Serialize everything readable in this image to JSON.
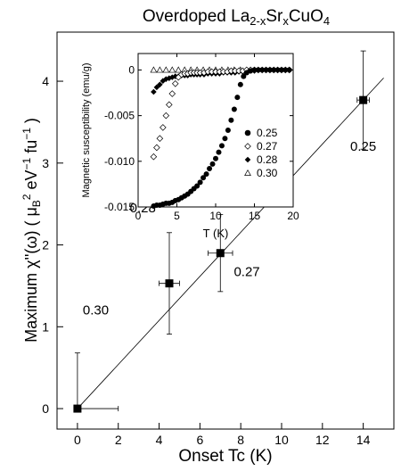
{
  "chart_data": [
    {
      "type": "scatter",
      "title": {
        "main": "Overdoped La",
        "sub1": "2-x",
        "mid1": "Sr",
        "sub2": "x",
        "mid2": "CuO",
        "sub3": "4"
      },
      "xlabel": "Onset Tc (K)",
      "ylabel": {
        "pre": "Maximum χ''(ω)  ( μ",
        "sub": "B",
        "sup1": "2",
        "mid": " eV",
        "sup2": "−1",
        "mid2": " fu",
        "sup3": "−1",
        "post": " )"
      },
      "xlim": [
        -1,
        15.5
      ],
      "ylim": [
        -0.25,
        4.6
      ],
      "xticks": [
        0,
        2,
        4,
        6,
        8,
        10,
        12,
        14
      ],
      "yticks": [
        0,
        1,
        2,
        3,
        4
      ],
      "x_tick_labels": [
        "0",
        "2",
        "4",
        "6",
        "8",
        "10",
        "12",
        "14"
      ],
      "y_tick_labels": [
        "0",
        "1",
        "2",
        "3",
        "4"
      ],
      "points": [
        {
          "x": 0,
          "y": 0,
          "xerr": [
            0,
            2
          ],
          "yerr": [
            0,
            0.68
          ],
          "label": "0.30",
          "label_pos": [
            0.9,
            1.15
          ]
        },
        {
          "x": 4.5,
          "y": 1.53,
          "xerr": [
            0.5,
            0.5
          ],
          "yerr": [
            0.62,
            0.62
          ],
          "label": "0.28",
          "label_pos": [
            3.2,
            2.4
          ]
        },
        {
          "x": 7,
          "y": 1.9,
          "xerr": [
            0.6,
            0.6
          ],
          "yerr": [
            0.47,
            0.47
          ],
          "label": "0.27",
          "label_pos": [
            8.3,
            1.62
          ]
        },
        {
          "x": 14,
          "y": 3.77,
          "xerr": [
            0.3,
            0.3
          ],
          "yerr": [
            0.6,
            0.6
          ],
          "label": "0.25",
          "label_pos": [
            14.0,
            3.15
          ]
        }
      ],
      "fit_line": {
        "x": [
          0,
          15
        ],
        "y": [
          0,
          4.04
        ]
      }
    },
    {
      "type": "scatter",
      "xlabel": "T (K)",
      "ylabel": "Magnetic susceptibility (emu/g)",
      "xlim": [
        0,
        20
      ],
      "ylim": [
        -0.015,
        0.0018
      ],
      "xticks": [
        0,
        5,
        10,
        15,
        20
      ],
      "yticks": [
        0,
        -0.005,
        -0.01,
        -0.015
      ],
      "x_tick_labels": [
        "0",
        "5",
        "10",
        "15",
        "20"
      ],
      "y_tick_labels": [
        "0",
        "-0.005",
        "-0.010",
        "-0.015"
      ],
      "legend": "right",
      "series": [
        {
          "name": "0.25",
          "marker": "filled-circle",
          "x": [
            2.0,
            2.4,
            2.8,
            3.2,
            3.6,
            4.0,
            4.4,
            4.8,
            5.2,
            5.6,
            6.0,
            6.4,
            6.8,
            7.2,
            7.6,
            8.0,
            8.4,
            8.8,
            9.2,
            9.6,
            10.0,
            10.4,
            10.8,
            11.2,
            11.6,
            12.0,
            12.4,
            12.8,
            13.2,
            13.6,
            14.0,
            14.5,
            15.0,
            15.5,
            16.0,
            16.5,
            17.0,
            17.5,
            18.0,
            18.5,
            19.0,
            19.5
          ],
          "y": [
            -0.0149,
            -0.0148,
            -0.0148,
            -0.0147,
            -0.0146,
            -0.0146,
            -0.0145,
            -0.0143,
            -0.0142,
            -0.014,
            -0.0138,
            -0.0136,
            -0.0133,
            -0.013,
            -0.0127,
            -0.0123,
            -0.0118,
            -0.0114,
            -0.0108,
            -0.0103,
            -0.0097,
            -0.009,
            -0.0083,
            -0.0075,
            -0.0066,
            -0.0055,
            -0.0043,
            -0.003,
            -0.0016,
            -0.0007,
            -0.0003,
            -0.0001,
            0,
            0,
            0,
            0,
            0,
            0,
            0,
            0,
            0,
            0
          ]
        },
        {
          "name": "0.27",
          "marker": "open-diamond",
          "x": [
            2.0,
            2.4,
            2.8,
            3.2,
            3.6,
            4.0,
            4.4,
            4.8,
            5.2,
            5.6,
            6.0,
            6.4,
            6.8,
            7.2,
            7.6,
            8.0,
            8.5,
            9.0,
            9.5,
            10.0,
            10.5,
            11.0,
            11.5,
            12.0,
            12.5,
            13.0,
            13.5,
            14.0,
            14.5,
            15.0,
            15.5,
            16.0,
            16.5,
            17.0,
            17.5,
            18.0,
            18.5,
            19.0,
            19.5
          ],
          "y": [
            -0.0095,
            -0.0085,
            -0.0075,
            -0.0063,
            -0.005,
            -0.0038,
            -0.0026,
            -0.0015,
            -0.0008,
            -0.0005,
            -0.0004,
            -0.0004,
            -0.0003,
            -0.0003,
            -0.0003,
            -0.0003,
            -0.0003,
            -0.0002,
            -0.0002,
            -0.0002,
            -0.0002,
            -0.0002,
            -0.0002,
            -0.0001,
            -0.0001,
            -0.0001,
            -0.0001,
            0,
            0,
            0,
            0,
            0,
            0,
            0,
            0,
            0,
            0,
            0,
            0
          ]
        },
        {
          "name": "0.28",
          "marker": "filled-diamond",
          "x": [
            2.0,
            2.4,
            2.8,
            3.2,
            3.6,
            4.0,
            4.4,
            4.8,
            5.2,
            5.6,
            6.0,
            6.4,
            6.8,
            7.2,
            7.6,
            8.0,
            8.5,
            9.0,
            9.5,
            10.0,
            10.5,
            11.0,
            11.5,
            12.0,
            12.5,
            13.0,
            13.5,
            14.0,
            14.5,
            15.0,
            15.5,
            16.0,
            16.5,
            17.0,
            17.5,
            18.0,
            18.5,
            19.0,
            19.5
          ],
          "y": [
            -0.0024,
            -0.0019,
            -0.0016,
            -0.0012,
            -0.001,
            -0.0009,
            -0.0008,
            -0.0007,
            -0.0007,
            -0.0006,
            -0.0006,
            -0.0006,
            -0.0005,
            -0.0005,
            -0.0005,
            -0.0005,
            -0.0005,
            -0.0004,
            -0.0004,
            -0.0004,
            -0.0004,
            -0.0003,
            -0.0003,
            -0.0003,
            -0.0003,
            -0.0002,
            -0.0002,
            -0.0002,
            -0.0001,
            -0.0001,
            0,
            0,
            0,
            0,
            0,
            0,
            0,
            0,
            0
          ]
        },
        {
          "name": "0.30",
          "marker": "open-triangle",
          "x": [
            2.0,
            2.8,
            3.6,
            4.4,
            5.2,
            6.0,
            6.8,
            7.6,
            8.4,
            9.2,
            10.0,
            10.8,
            11.6,
            12.4,
            13.2
          ],
          "y": [
            0,
            0,
            0,
            0,
            0,
            0,
            0,
            0,
            0,
            0,
            0,
            0,
            0,
            0,
            0
          ]
        }
      ]
    }
  ]
}
